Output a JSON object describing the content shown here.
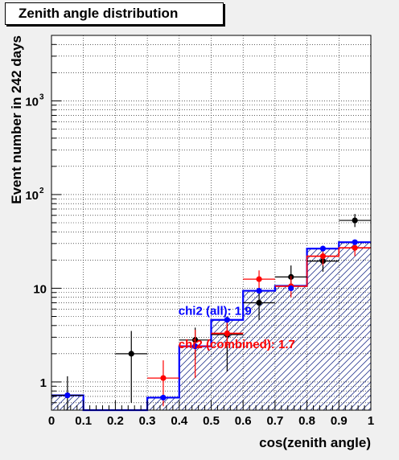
{
  "chart_data": {
    "type": "histogram",
    "title": "Zenith angle distribution",
    "xlabel": "cos(zenith angle)",
    "ylabel": "Event number in 242 days",
    "xlim": [
      0,
      1
    ],
    "ylim": [
      0.5,
      5000
    ],
    "yscale": "log",
    "grid": true,
    "bin_edges": [
      0,
      0.1,
      0.2,
      0.3,
      0.4,
      0.5,
      0.6,
      0.7,
      0.8,
      0.9,
      1.0
    ],
    "x_ticks": [
      "0",
      "0.1",
      "0.2",
      "0.3",
      "0.4",
      "0.5",
      "0.6",
      "0.7",
      "0.8",
      "0.9",
      "1"
    ],
    "y_ticks": [
      {
        "value": 1,
        "label": "1",
        "sup": ""
      },
      {
        "value": 10,
        "label": "10",
        "sup": ""
      },
      {
        "value": 100,
        "label": "10",
        "sup": "2"
      },
      {
        "value": 1000,
        "label": "10",
        "sup": "3"
      }
    ],
    "series": [
      {
        "name": "",
        "kind": "step",
        "color": "#0000ff",
        "values": [
          0.72,
          0.5,
          0.5,
          0.68,
          2.4,
          4.6,
          9.4,
          10.6,
          26.5,
          31
        ]
      },
      {
        "name": "",
        "kind": "step",
        "color": "#ff0000",
        "values": [
          null,
          null,
          null,
          null,
          null,
          3.3,
          null,
          10.5,
          22,
          27
        ]
      },
      {
        "name": "",
        "kind": "errorbar",
        "color": "#000000",
        "points": [
          {
            "x": 0.05,
            "y": 0.72,
            "lo": 0.5,
            "hi": 1.15
          },
          {
            "x": 0.25,
            "y": 2.0,
            "lo": 0.6,
            "hi": 3.5
          },
          {
            "x": 0.45,
            "y": 2.8,
            "lo": 1.7,
            "hi": 3.8
          },
          {
            "x": 0.55,
            "y": 3.2,
            "lo": 1.3,
            "hi": 5.0
          },
          {
            "x": 0.65,
            "y": 7.0,
            "lo": 4.6,
            "hi": 10.0
          },
          {
            "x": 0.75,
            "y": 13.2,
            "lo": 10.0,
            "hi": 17.5
          },
          {
            "x": 0.85,
            "y": 19.5,
            "lo": 15.0,
            "hi": 25.0
          },
          {
            "x": 0.95,
            "y": 53,
            "lo": 45,
            "hi": 62
          }
        ]
      },
      {
        "name": "",
        "kind": "errorbar",
        "color": "#ff0000",
        "points": [
          {
            "x": 0.35,
            "y": 1.1,
            "lo": 0.55,
            "hi": 1.7
          },
          {
            "x": 0.45,
            "y": 2.4,
            "lo": 1.1,
            "hi": 3.6
          },
          {
            "x": 0.55,
            "y": 3.3,
            "lo": 2.4,
            "hi": 4.3
          },
          {
            "x": 0.65,
            "y": 12.5,
            "lo": 10.0,
            "hi": 15.5
          },
          {
            "x": 0.75,
            "y": 10.5,
            "lo": 8.0,
            "hi": 13.5
          },
          {
            "x": 0.85,
            "y": 22,
            "lo": 17.5,
            "hi": 26.5
          },
          {
            "x": 0.95,
            "y": 27,
            "lo": 22,
            "hi": 32
          }
        ]
      },
      {
        "name": "",
        "kind": "points",
        "color": "#0000ff",
        "points": [
          {
            "x": 0.05,
            "y": 0.72
          },
          {
            "x": 0.35,
            "y": 0.68
          },
          {
            "x": 0.45,
            "y": 2.4
          },
          {
            "x": 0.55,
            "y": 4.6
          },
          {
            "x": 0.65,
            "y": 9.4
          },
          {
            "x": 0.75,
            "y": 10.0
          },
          {
            "x": 0.85,
            "y": 26.5
          },
          {
            "x": 0.95,
            "y": 31
          }
        ]
      }
    ],
    "annotations": [
      {
        "text": "chi2 (all): 1.9",
        "color": "#0000ff",
        "x": 0.4,
        "y": 5.2
      },
      {
        "text": "chi2 (combined): 1.7",
        "color": "#ff0000",
        "x": 0.4,
        "y": 2.3
      }
    ]
  }
}
